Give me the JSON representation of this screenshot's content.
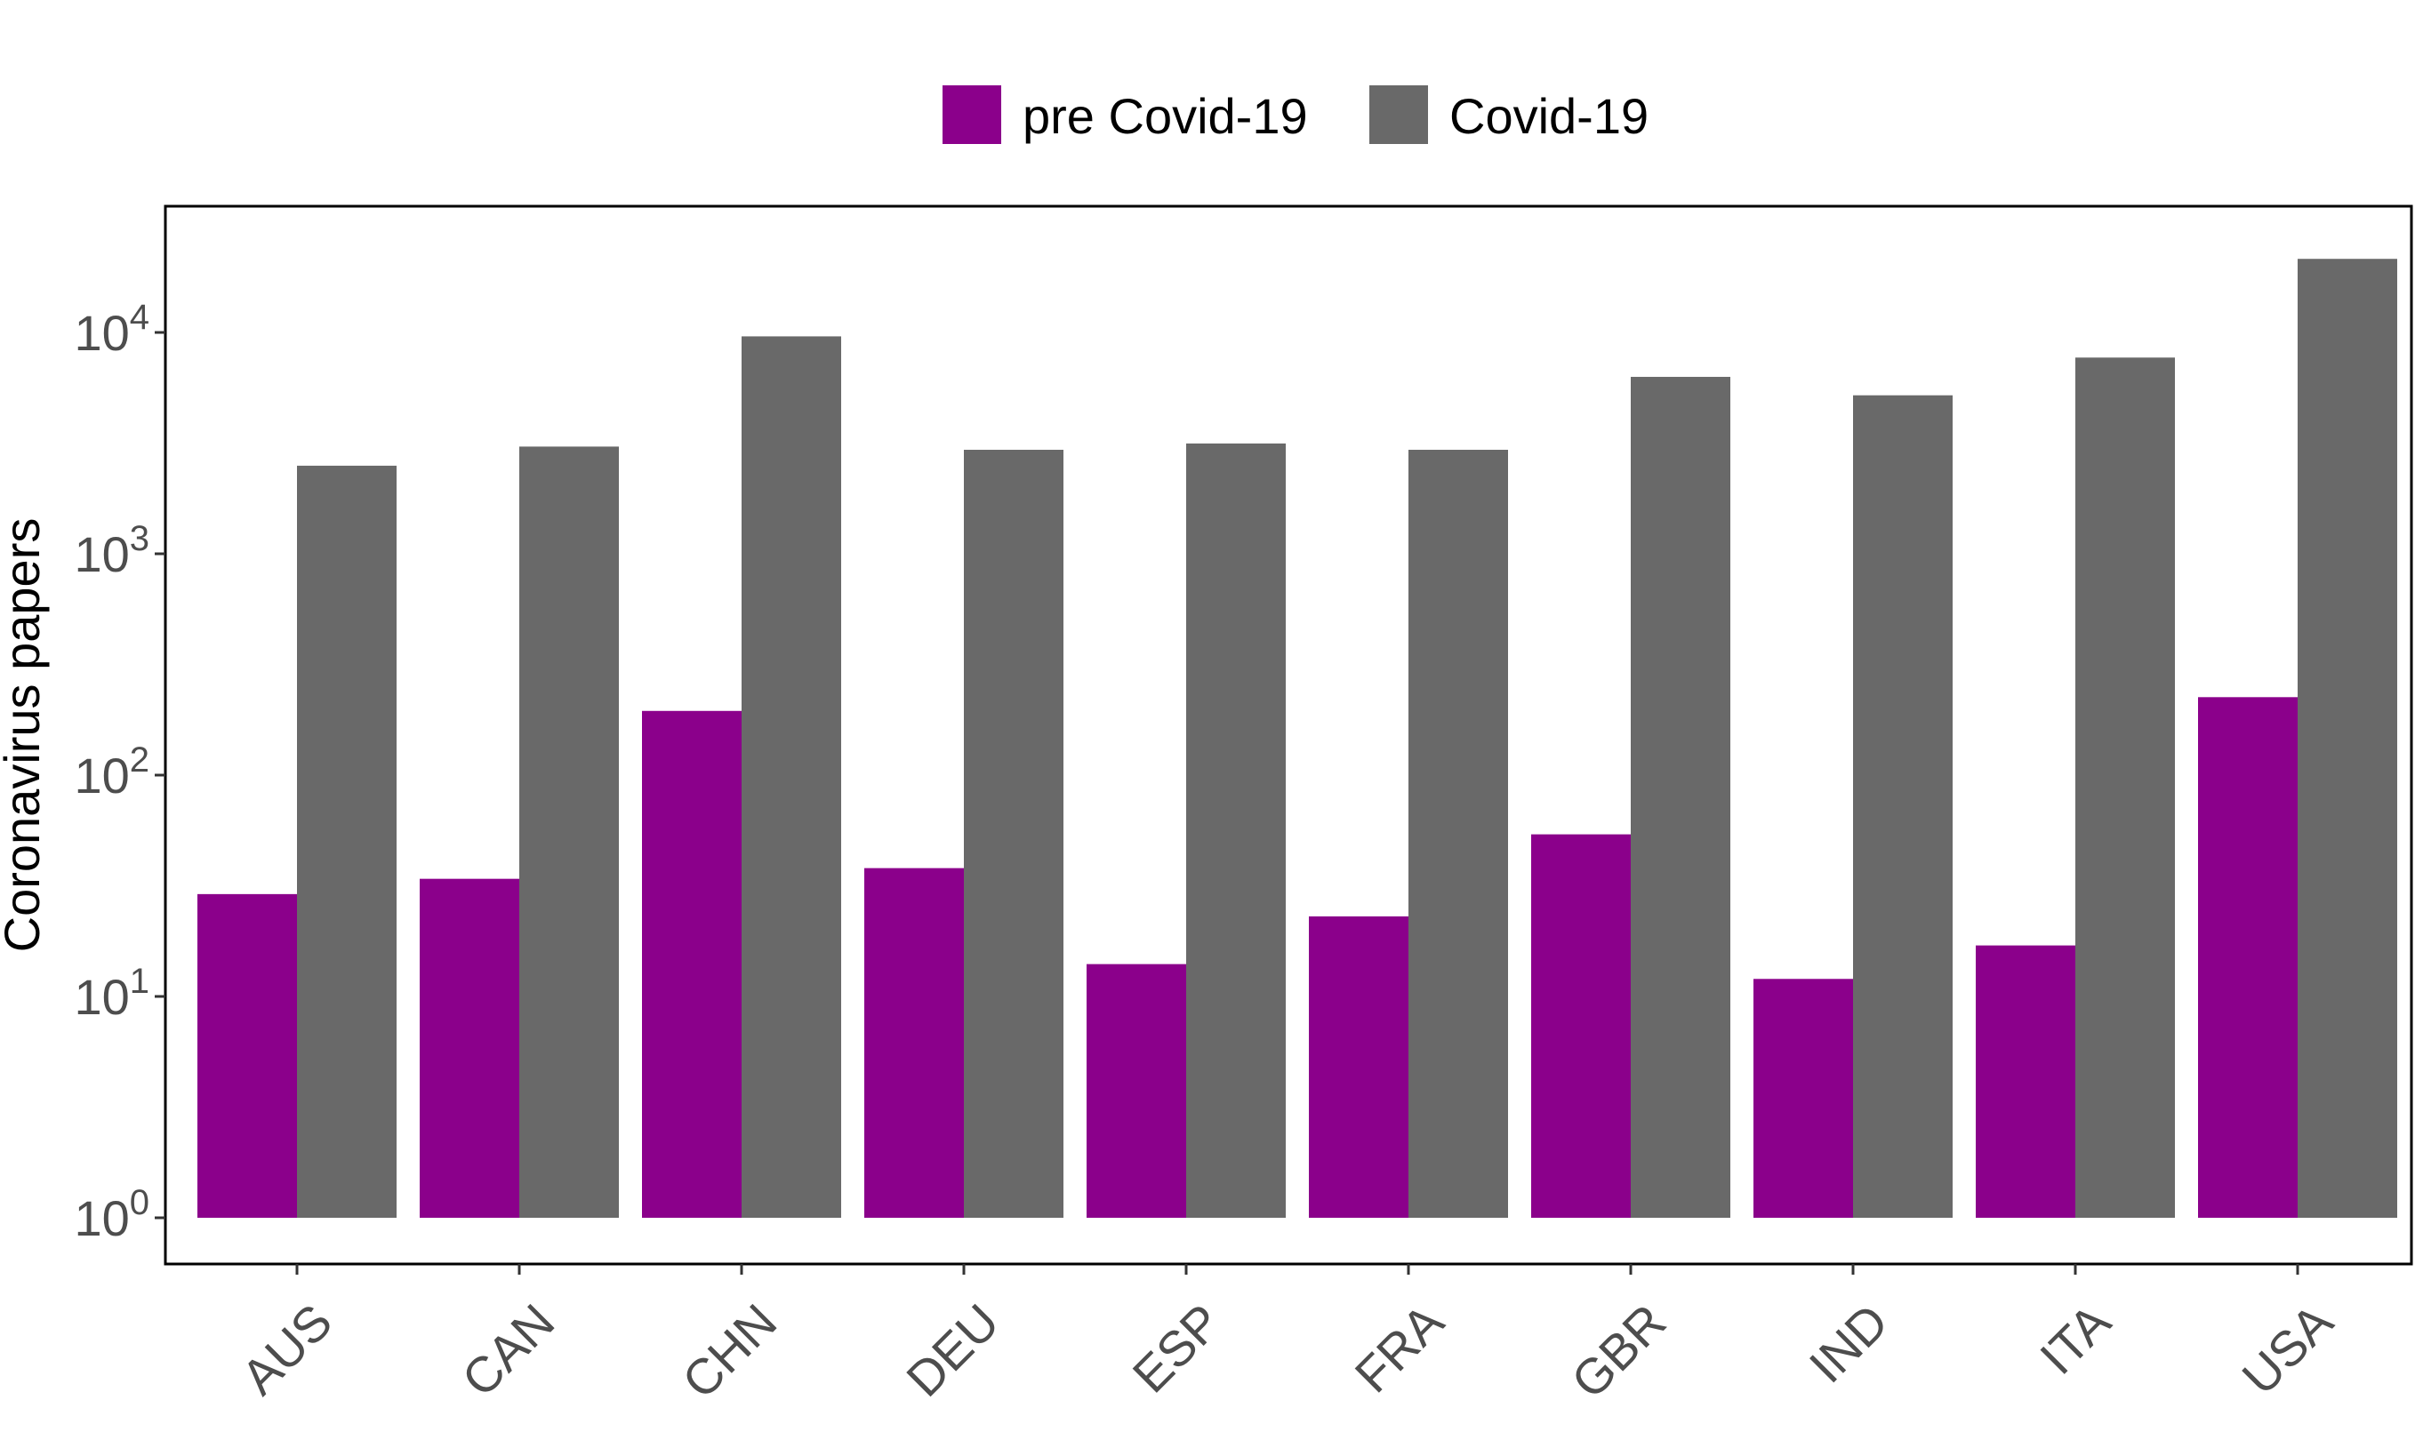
{
  "chart_data": {
    "type": "bar",
    "title": "",
    "xlabel": "",
    "ylabel": "Coronavirus papers",
    "y_scale": "log10",
    "ylim": [
      1,
      30000
    ],
    "y_ticks": [
      {
        "value": 1,
        "base": "10",
        "exp": "0"
      },
      {
        "value": 10,
        "base": "10",
        "exp": "1"
      },
      {
        "value": 100,
        "base": "10",
        "exp": "2"
      },
      {
        "value": 1000,
        "base": "10",
        "exp": "3"
      },
      {
        "value": 10000,
        "base": "10",
        "exp": "4"
      }
    ],
    "grid": false,
    "legend_position": "top",
    "categories": [
      "AUS",
      "CAN",
      "CHN",
      "DEU",
      "ESP",
      "FRA",
      "GBR",
      "IND",
      "ITA",
      "USA"
    ],
    "series": [
      {
        "name": "pre Covid-19",
        "color": "#8B008B",
        "values": [
          29,
          34,
          195,
          38,
          14,
          23,
          54,
          12,
          17,
          225
        ]
      },
      {
        "name": "Covid-19",
        "color": "#696969",
        "values": [
          2500,
          3050,
          9600,
          2950,
          3150,
          2950,
          6300,
          5200,
          7700,
          21500
        ]
      }
    ]
  }
}
